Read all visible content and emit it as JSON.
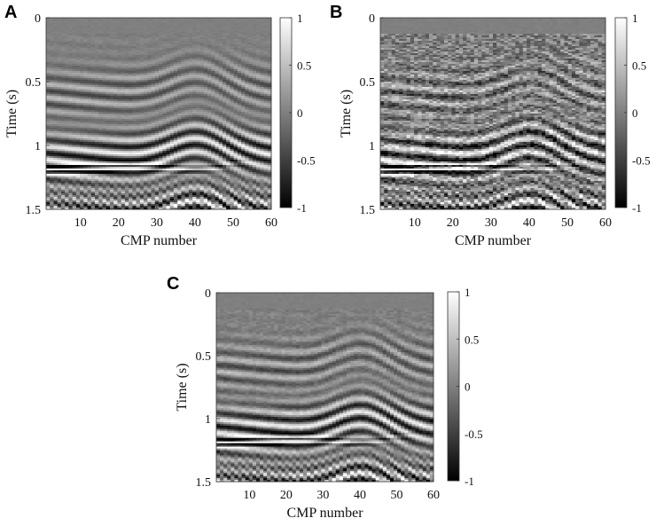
{
  "chart_data": [
    {
      "panel": "A",
      "type": "heatmap",
      "xlabel": "CMP number",
      "ylabel": "Time (s)",
      "xticks": [
        10,
        20,
        30,
        40,
        50,
        60
      ],
      "yticks": [
        "0",
        "0.5",
        "1",
        "1.5"
      ],
      "xlim": [
        1,
        60
      ],
      "ylim": [
        0,
        1.5
      ],
      "colorbar": {
        "ticks": [
          "1",
          "0.5",
          "0",
          "-0.5",
          "-1"
        ],
        "range": [
          -1,
          1
        ],
        "colormap": "gray"
      },
      "noise": 0.05
    },
    {
      "panel": "B",
      "type": "heatmap",
      "xlabel": "CMP number",
      "ylabel": "Time (s)",
      "xticks": [
        10,
        20,
        30,
        40,
        50,
        60
      ],
      "yticks": [
        "0",
        "0.5",
        "1",
        "1.5"
      ],
      "xlim": [
        1,
        60
      ],
      "ylim": [
        0,
        1.5
      ],
      "colorbar": {
        "ticks": [
          "1",
          "0.5",
          "0",
          "-0.5",
          "-1"
        ],
        "range": [
          -1,
          1
        ],
        "colormap": "gray"
      },
      "noise": 0.35
    },
    {
      "panel": "C",
      "type": "heatmap",
      "xlabel": "CMP number",
      "ylabel": "Time (s)",
      "xticks": [
        10,
        20,
        30,
        40,
        50,
        60
      ],
      "yticks": [
        "0",
        "0.5",
        "1",
        "1.5"
      ],
      "xlim": [
        1,
        60
      ],
      "ylim": [
        0,
        1.5
      ],
      "colorbar": {
        "ticks": [
          "1",
          "0.5",
          "0",
          "-0.5",
          "-1"
        ],
        "range": [
          -1,
          1
        ],
        "colormap": "gray"
      },
      "noise": 0.1
    }
  ]
}
